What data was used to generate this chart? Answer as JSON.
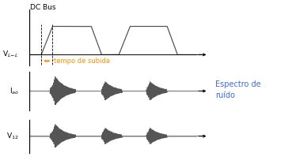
{
  "bg_color": "#ffffff",
  "fig_width": 3.69,
  "fig_height": 2.08,
  "dpi": 100,
  "dc_bus_label": "DC Bus",
  "vll_label": "V$_{L\\!-\\!L}$",
  "iao_label": "I$_{ao}$",
  "v12_label": "V$_{12}$",
  "tempo_label": "tempo de subida",
  "espectro_label": "Espectro de\nruído",
  "tempo_color": "#FF8C00",
  "espectro_color": "#4169E1",
  "signal_color": "#555555",
  "axis_color": "#000000",
  "gray_line": "#aaaaaa"
}
